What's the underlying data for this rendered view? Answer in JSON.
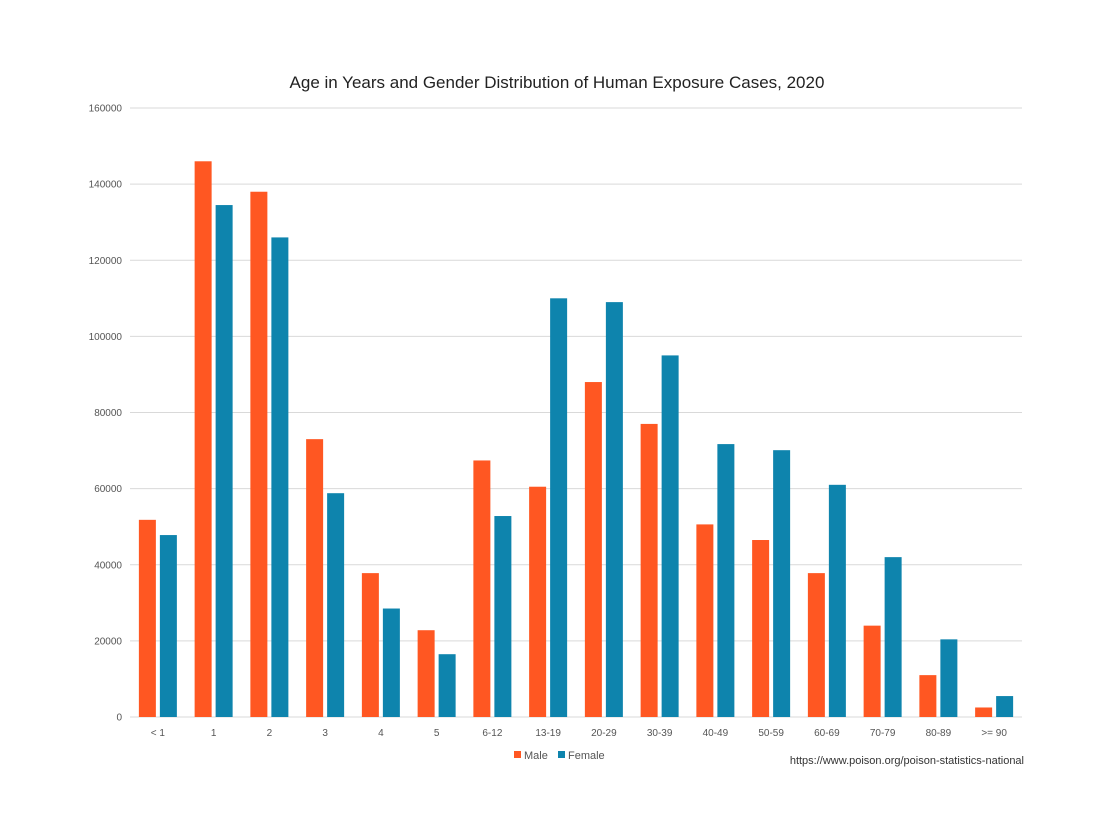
{
  "chart_data": {
    "type": "bar",
    "title": "Age in Years and Gender Distribution of Human Exposure Cases, 2020",
    "xlabel": "",
    "ylabel": "",
    "categories": [
      "< 1",
      "1",
      "2",
      "3",
      "4",
      "5",
      "6-12",
      "13-19",
      "20-29",
      "30-39",
      "40-49",
      "50-59",
      "60-69",
      "70-79",
      "80-89",
      ">= 90"
    ],
    "series": [
      {
        "name": "Male",
        "color": "#ff5722",
        "values": [
          51800,
          146000,
          138000,
          73000,
          37800,
          22800,
          67400,
          60500,
          88000,
          77000,
          50600,
          46500,
          37800,
          24000,
          11000,
          2500
        ]
      },
      {
        "name": "Female",
        "color": "#0e84ad",
        "values": [
          47800,
          134500,
          126000,
          58800,
          28500,
          16500,
          52800,
          110000,
          109000,
          95000,
          71700,
          70100,
          61000,
          42000,
          20400,
          5500
        ]
      }
    ],
    "ylim": [
      0,
      160000
    ],
    "yticks": [
      "0",
      "20000",
      "40000",
      "60000",
      "80000",
      "100000",
      "120000",
      "140000",
      "160000"
    ],
    "grid": true,
    "legend_position": "bottom-center",
    "source_note": "https://www.poison.org/poison-statistics-national"
  }
}
